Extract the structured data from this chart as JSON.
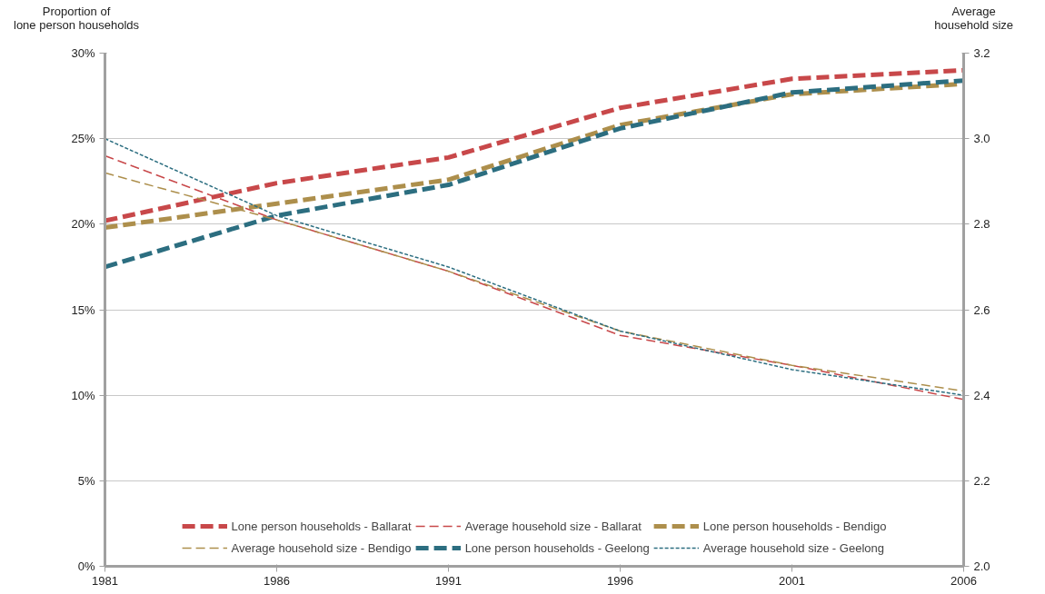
{
  "chart_data": {
    "type": "line",
    "ylabel": "Proportion of\nlone person households",
    "y2label": "Average\nhousehold size",
    "x": [
      1981,
      1986,
      1991,
      1996,
      2001,
      2006
    ],
    "xlim": [
      1981,
      2006
    ],
    "xticks": [
      1981,
      1986,
      1991,
      1996,
      2001,
      2006
    ],
    "ylim": [
      0,
      30
    ],
    "yticks": [
      {
        "value": 0,
        "label": "0%"
      },
      {
        "value": 5,
        "label": "5%"
      },
      {
        "value": 10,
        "label": "10%"
      },
      {
        "value": 15,
        "label": "15%"
      },
      {
        "value": 20,
        "label": "20%"
      },
      {
        "value": 25,
        "label": "25%"
      },
      {
        "value": 30,
        "label": "30%"
      }
    ],
    "y2lim": [
      2.0,
      3.2
    ],
    "y2ticks": [
      {
        "value": 2.0,
        "label": "2.0"
      },
      {
        "value": 2.2,
        "label": "2.2"
      },
      {
        "value": 2.4,
        "label": "2.4"
      },
      {
        "value": 2.6,
        "label": "2.6"
      },
      {
        "value": 2.8,
        "label": "2.8"
      },
      {
        "value": 3.0,
        "label": "3.0"
      },
      {
        "value": 3.2,
        "label": "3.2"
      }
    ],
    "grid": "y",
    "legend": "bottom",
    "marker": "none",
    "series": [
      {
        "name": "Lone person households - Ballarat",
        "color": "#c8484a",
        "line_style": "dashed",
        "values": [
          20.2,
          22.4,
          23.9,
          26.8,
          28.5,
          29.0
        ]
      },
      {
        "name": "Lone person households - Bendigo",
        "color": "#ad8f4c",
        "line_style": "dashed",
        "values": [
          19.8,
          21.2,
          22.6,
          25.8,
          27.6,
          28.2
        ]
      },
      {
        "name": "Lone person households - Geelong",
        "color": "#2c6e80",
        "line_style": "dashed",
        "values": [
          17.5,
          20.5,
          22.3,
          25.6,
          27.7,
          28.4
        ]
      },
      {
        "name": "Average household size - Ballarat",
        "color": "#c8484a",
        "line_style": "dashed",
        "axis": "y2",
        "values": [
          2.96,
          2.81,
          2.69,
          2.54,
          2.47,
          2.39
        ]
      },
      {
        "name": "Average household size - Bendigo",
        "color": "#ad8f4c",
        "line_style": "dashed",
        "axis": "y2",
        "values": [
          2.92,
          2.81,
          2.69,
          2.55,
          2.47,
          2.41
        ]
      },
      {
        "name": "Average household size - Geelong",
        "color": "#2c6e80",
        "line_style": "dotted",
        "axis": "y2",
        "values": [
          3.0,
          2.82,
          2.7,
          2.55,
          2.46,
          2.4
        ]
      }
    ]
  }
}
